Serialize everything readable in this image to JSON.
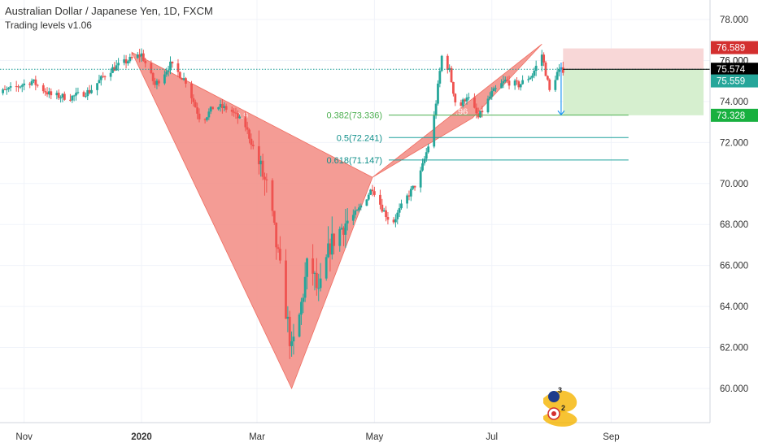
{
  "header": {
    "title": "Australian Dollar / Japanese Yen, 1D, FXCM",
    "indicator": "Trading levels v1.06"
  },
  "colors": {
    "up": "#26a69a",
    "down": "#ef5350",
    "pattern_fill": "#f28b82",
    "fib_line": "#1ea09b",
    "fib_text_382": "#4caf50",
    "fib_text_other": "#0f8f8a",
    "price_line": "#1e9e96",
    "stop_zone": "#f8d7d7",
    "target_zone": "#d6efcf",
    "badge_stop": "#d32f2f",
    "badge_current": "#000000",
    "badge_mid": "#26a69a",
    "badge_target": "#18b03f"
  },
  "fib_levels": [
    {
      "label": "0.382(73.336)",
      "price": 73.336
    },
    {
      "label": "0.5(72.241)",
      "price": 72.241
    },
    {
      "label": "0.618(71.147)",
      "price": 71.147
    }
  ],
  "price_badges": [
    {
      "text": "76.589",
      "price": 76.589,
      "role": "stop"
    },
    {
      "text": "76.000",
      "price": 76.0,
      "role": "tick"
    },
    {
      "text": "75.574",
      "price": 75.574,
      "role": "current"
    },
    {
      "text": "75.559",
      "price": 75.559,
      "role": "mid"
    },
    {
      "text": "73.328",
      "price": 73.328,
      "role": "target"
    }
  ],
  "pattern_labels": [
    "0.9",
    ".96"
  ],
  "logo": {
    "top_number": "3",
    "bottom_number": "2"
  },
  "chart_data": {
    "type": "candlestick",
    "title": "Australian Dollar / Japanese Yen, 1D, FXCM",
    "xlabel": "",
    "ylabel": "",
    "ylim": [
      59.0,
      79.0
    ],
    "y_ticks": [
      "78.000",
      "76.000",
      "74.000",
      "72.000",
      "70.000",
      "68.000",
      "66.000",
      "64.000",
      "62.000",
      "60.000"
    ],
    "y_tick_values": [
      78,
      76,
      74,
      72,
      70,
      68,
      66,
      64,
      62,
      60
    ],
    "x_ticks": [
      "Nov",
      "2020",
      "Mar",
      "May",
      "Jul",
      "Sep"
    ],
    "x_tick_dates": [
      "2019-11-01",
      "2020-01-01",
      "2020-03-01",
      "2020-05-01",
      "2020-07-01",
      "2020-09-01"
    ],
    "date_range": [
      "2019-10-15",
      "2020-10-31"
    ],
    "close_path": [
      [
        "2019-10-15",
        74.3
      ],
      [
        "2019-10-25",
        74.6
      ],
      [
        "2019-11-05",
        75.0
      ],
      [
        "2019-11-15",
        74.3
      ],
      [
        "2019-11-25",
        74.2
      ],
      [
        "2019-12-05",
        74.5
      ],
      [
        "2019-12-15",
        75.5
      ],
      [
        "2019-12-25",
        76.0
      ],
      [
        "2020-01-01",
        76.3
      ],
      [
        "2020-01-08",
        74.8
      ],
      [
        "2020-01-16",
        75.8
      ],
      [
        "2020-01-24",
        75.0
      ],
      [
        "2020-02-01",
        73.0
      ],
      [
        "2020-02-08",
        73.8
      ],
      [
        "2020-02-16",
        73.6
      ],
      [
        "2020-02-24",
        72.8
      ],
      [
        "2020-03-02",
        71.0
      ],
      [
        "2020-03-07",
        69.5
      ],
      [
        "2020-03-11",
        67.0
      ],
      [
        "2020-03-15",
        64.5
      ],
      [
        "2020-03-19",
        61.8
      ],
      [
        "2020-03-23",
        63.5
      ],
      [
        "2020-03-28",
        66.5
      ],
      [
        "2020-04-02",
        64.5
      ],
      [
        "2020-04-08",
        67.0
      ],
      [
        "2020-04-15",
        68.0
      ],
      [
        "2020-04-22",
        68.6
      ],
      [
        "2020-04-30",
        69.8
      ],
      [
        "2020-05-05",
        68.8
      ],
      [
        "2020-05-10",
        68.0
      ],
      [
        "2020-05-17",
        69.2
      ],
      [
        "2020-05-24",
        70.2
      ],
      [
        "2020-05-31",
        72.5
      ],
      [
        "2020-06-05",
        76.2
      ],
      [
        "2020-06-09",
        75.5
      ],
      [
        "2020-06-13",
        73.5
      ],
      [
        "2020-06-18",
        74.3
      ],
      [
        "2020-06-24",
        73.2
      ],
      [
        "2020-07-01",
        74.4
      ],
      [
        "2020-07-08",
        75.0
      ],
      [
        "2020-07-15",
        74.8
      ],
      [
        "2020-07-22",
        75.3
      ],
      [
        "2020-07-27",
        76.3
      ],
      [
        "2020-07-31",
        74.5
      ],
      [
        "2020-08-04",
        75.4
      ],
      [
        "2020-08-07",
        75.56
      ]
    ],
    "series": [
      {
        "name": "Bat pattern",
        "type": "polygon",
        "points": [
          [
            "2019-12-27",
            76.4
          ],
          [
            "2020-03-19",
            60.0
          ],
          [
            "2020-04-30",
            70.3
          ],
          [
            "2020-06-21",
            73.2
          ],
          [
            "2020-07-27",
            76.8
          ]
        ]
      }
    ],
    "fib_start_date": "2020-06-20",
    "fib_end_date": "2020-09-10",
    "trade_box": {
      "start_date": "2020-08-07",
      "end_date": "2020-10-19",
      "entry": 75.574,
      "stop": 76.589,
      "target": 73.328
    },
    "projection": {
      "date": "2020-08-06",
      "from": 75.9,
      "to": 73.35
    },
    "grid": true,
    "legend": "none"
  }
}
